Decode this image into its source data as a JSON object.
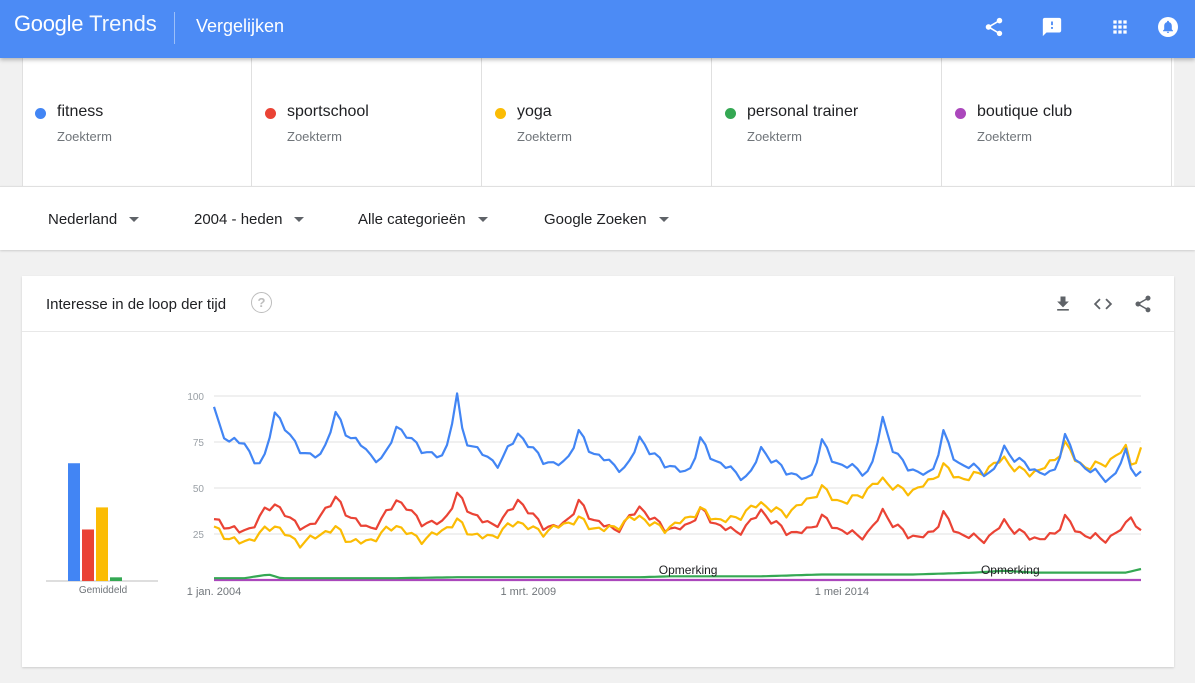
{
  "header": {
    "logo_google": "Google",
    "logo_trends": "Trends",
    "page_title": "Vergelijken",
    "icons": [
      "share-icon",
      "feedback-icon",
      "apps-icon",
      "notifications-icon"
    ]
  },
  "terms": [
    {
      "name": "fitness",
      "type": "Zoekterm",
      "color": "#4285f4"
    },
    {
      "name": "sportschool",
      "type": "Zoekterm",
      "color": "#ea4335"
    },
    {
      "name": "yoga",
      "type": "Zoekterm",
      "color": "#fbbc04"
    },
    {
      "name": "personal trainer",
      "type": "Zoekterm",
      "color": "#34a853"
    },
    {
      "name": "boutique club",
      "type": "Zoekterm",
      "color": "#ab47bc"
    }
  ],
  "filters": {
    "region": "Nederland",
    "period": "2004 - heden",
    "category": "Alle categorieën",
    "property": "Google Zoeken"
  },
  "card": {
    "title": "Interesse in de loop der tijd",
    "help_glyph": "?",
    "avg_label": "Gemiddeld",
    "icons": [
      "download-icon",
      "embed-icon",
      "share-icon"
    ]
  },
  "chart_data": {
    "type": "line",
    "ylim": [
      0,
      100
    ],
    "y_ticks": [
      25,
      50,
      75,
      100
    ],
    "x_ticks": [
      {
        "label": "1 jan. 2004",
        "x": 2004.0
      },
      {
        "label": "1 mrt. 2009",
        "x": 2009.17
      },
      {
        "label": "1 mei 2014",
        "x": 2014.33
      }
    ],
    "x_range": [
      2004.0,
      2019.25
    ],
    "annotations": [
      {
        "text": "Opmerking",
        "x": 2011.8
      },
      {
        "text": "Opmerking",
        "x": 2017.1
      }
    ],
    "averages": [
      {
        "name": "fitness",
        "value": 64
      },
      {
        "name": "sportschool",
        "value": 28
      },
      {
        "name": "yoga",
        "value": 40
      },
      {
        "name": "personal trainer",
        "value": 2
      },
      {
        "name": "boutique club",
        "value": 0
      }
    ],
    "series": [
      {
        "name": "fitness",
        "color": "#4285f4",
        "anchors": [
          [
            2004.0,
            93
          ],
          [
            2004.1,
            82
          ],
          [
            2004.25,
            76
          ],
          [
            2004.5,
            74
          ],
          [
            2004.65,
            66
          ],
          [
            2004.8,
            61
          ],
          [
            2005.0,
            92
          ],
          [
            2005.2,
            80
          ],
          [
            2005.4,
            72
          ],
          [
            2005.6,
            66
          ],
          [
            2005.8,
            70
          ],
          [
            2006.0,
            90
          ],
          [
            2006.2,
            79
          ],
          [
            2006.4,
            74
          ],
          [
            2006.6,
            67
          ],
          [
            2006.8,
            65
          ],
          [
            2007.0,
            84
          ],
          [
            2007.2,
            77
          ],
          [
            2007.4,
            72
          ],
          [
            2007.6,
            67
          ],
          [
            2007.8,
            68
          ],
          [
            2008.0,
            100
          ],
          [
            2008.1,
            77
          ],
          [
            2008.3,
            72
          ],
          [
            2008.5,
            66
          ],
          [
            2008.7,
            63
          ],
          [
            2009.0,
            80
          ],
          [
            2009.2,
            72
          ],
          [
            2009.4,
            66
          ],
          [
            2009.6,
            62
          ],
          [
            2009.8,
            65
          ],
          [
            2010.0,
            80
          ],
          [
            2010.2,
            70
          ],
          [
            2010.4,
            66
          ],
          [
            2010.6,
            62
          ],
          [
            2010.8,
            60
          ],
          [
            2011.0,
            78
          ],
          [
            2011.2,
            68
          ],
          [
            2011.4,
            64
          ],
          [
            2011.6,
            60
          ],
          [
            2011.8,
            58
          ],
          [
            2012.0,
            76
          ],
          [
            2012.2,
            66
          ],
          [
            2012.4,
            62
          ],
          [
            2012.6,
            58
          ],
          [
            2012.8,
            55
          ],
          [
            2013.0,
            72
          ],
          [
            2013.2,
            64
          ],
          [
            2013.4,
            60
          ],
          [
            2013.6,
            56
          ],
          [
            2013.8,
            54
          ],
          [
            2014.0,
            75
          ],
          [
            2014.2,
            64
          ],
          [
            2014.4,
            62
          ],
          [
            2014.6,
            60
          ],
          [
            2014.8,
            58
          ],
          [
            2015.0,
            88
          ],
          [
            2015.2,
            68
          ],
          [
            2015.4,
            62
          ],
          [
            2015.6,
            58
          ],
          [
            2015.8,
            57
          ],
          [
            2016.0,
            80
          ],
          [
            2016.2,
            64
          ],
          [
            2016.4,
            62
          ],
          [
            2016.6,
            60
          ],
          [
            2016.8,
            57
          ],
          [
            2017.0,
            72
          ],
          [
            2017.2,
            65
          ],
          [
            2017.4,
            62
          ],
          [
            2017.6,
            58
          ],
          [
            2017.8,
            57
          ],
          [
            2018.0,
            78
          ],
          [
            2018.2,
            64
          ],
          [
            2018.4,
            60
          ],
          [
            2018.6,
            56
          ],
          [
            2018.8,
            55
          ],
          [
            2019.0,
            70
          ],
          [
            2019.1,
            60
          ],
          [
            2019.25,
            57
          ]
        ]
      },
      {
        "name": "sportschool",
        "color": "#ea4335",
        "anchors": [
          [
            2004.0,
            32
          ],
          [
            2004.2,
            30
          ],
          [
            2004.4,
            26
          ],
          [
            2004.6,
            28
          ],
          [
            2004.8,
            36
          ],
          [
            2005.0,
            42
          ],
          [
            2005.2,
            34
          ],
          [
            2005.4,
            30
          ],
          [
            2005.6,
            28
          ],
          [
            2005.8,
            38
          ],
          [
            2006.0,
            44
          ],
          [
            2006.2,
            36
          ],
          [
            2006.4,
            30
          ],
          [
            2006.6,
            28
          ],
          [
            2006.8,
            34
          ],
          [
            2007.0,
            44
          ],
          [
            2007.2,
            38
          ],
          [
            2007.4,
            32
          ],
          [
            2007.6,
            30
          ],
          [
            2007.8,
            33
          ],
          [
            2008.0,
            46
          ],
          [
            2008.2,
            38
          ],
          [
            2008.4,
            32
          ],
          [
            2008.6,
            30
          ],
          [
            2008.8,
            34
          ],
          [
            2009.0,
            44
          ],
          [
            2009.2,
            36
          ],
          [
            2009.4,
            30
          ],
          [
            2009.6,
            28
          ],
          [
            2009.8,
            32
          ],
          [
            2010.0,
            42
          ],
          [
            2010.2,
            34
          ],
          [
            2010.4,
            30
          ],
          [
            2010.6,
            27
          ],
          [
            2010.8,
            32
          ],
          [
            2011.0,
            40
          ],
          [
            2011.2,
            33
          ],
          [
            2011.4,
            29
          ],
          [
            2011.6,
            27
          ],
          [
            2011.8,
            30
          ],
          [
            2012.0,
            38
          ],
          [
            2012.2,
            32
          ],
          [
            2012.4,
            28
          ],
          [
            2012.6,
            26
          ],
          [
            2012.8,
            30
          ],
          [
            2013.0,
            38
          ],
          [
            2013.2,
            31
          ],
          [
            2013.4,
            27
          ],
          [
            2013.6,
            25
          ],
          [
            2013.8,
            28
          ],
          [
            2014.0,
            34
          ],
          [
            2014.2,
            29
          ],
          [
            2014.4,
            26
          ],
          [
            2014.6,
            24
          ],
          [
            2014.8,
            26
          ],
          [
            2015.0,
            38
          ],
          [
            2015.2,
            29
          ],
          [
            2015.4,
            25
          ],
          [
            2015.6,
            23
          ],
          [
            2015.8,
            25
          ],
          [
            2016.0,
            36
          ],
          [
            2016.2,
            26
          ],
          [
            2016.4,
            24
          ],
          [
            2016.6,
            22
          ],
          [
            2016.8,
            24
          ],
          [
            2017.0,
            32
          ],
          [
            2017.2,
            26
          ],
          [
            2017.4,
            24
          ],
          [
            2017.6,
            22
          ],
          [
            2017.8,
            24
          ],
          [
            2018.0,
            34
          ],
          [
            2018.2,
            26
          ],
          [
            2018.4,
            24
          ],
          [
            2018.6,
            22
          ],
          [
            2018.8,
            24
          ],
          [
            2019.0,
            30
          ],
          [
            2019.1,
            36
          ],
          [
            2019.25,
            25
          ]
        ]
      },
      {
        "name": "yoga",
        "color": "#fbbc04",
        "anchors": [
          [
            2004.0,
            28
          ],
          [
            2004.2,
            24
          ],
          [
            2004.4,
            20
          ],
          [
            2004.6,
            22
          ],
          [
            2004.8,
            26
          ],
          [
            2005.0,
            30
          ],
          [
            2005.2,
            24
          ],
          [
            2005.4,
            20
          ],
          [
            2005.6,
            22
          ],
          [
            2005.8,
            26
          ],
          [
            2006.0,
            28
          ],
          [
            2006.2,
            22
          ],
          [
            2006.4,
            20
          ],
          [
            2006.6,
            22
          ],
          [
            2006.8,
            26
          ],
          [
            2007.0,
            30
          ],
          [
            2007.2,
            25
          ],
          [
            2007.4,
            22
          ],
          [
            2007.6,
            24
          ],
          [
            2007.8,
            28
          ],
          [
            2008.0,
            32
          ],
          [
            2008.2,
            26
          ],
          [
            2008.4,
            23
          ],
          [
            2008.6,
            24
          ],
          [
            2008.8,
            28
          ],
          [
            2009.0,
            32
          ],
          [
            2009.2,
            28
          ],
          [
            2009.4,
            26
          ],
          [
            2009.6,
            28
          ],
          [
            2009.8,
            31
          ],
          [
            2010.0,
            33
          ],
          [
            2010.2,
            29
          ],
          [
            2010.4,
            27
          ],
          [
            2010.6,
            29
          ],
          [
            2010.8,
            32
          ],
          [
            2011.0,
            35
          ],
          [
            2011.2,
            30
          ],
          [
            2011.4,
            28
          ],
          [
            2011.6,
            30
          ],
          [
            2011.8,
            34
          ],
          [
            2012.0,
            38
          ],
          [
            2012.2,
            34
          ],
          [
            2012.4,
            32
          ],
          [
            2012.6,
            34
          ],
          [
            2012.8,
            38
          ],
          [
            2013.0,
            42
          ],
          [
            2013.2,
            38
          ],
          [
            2013.4,
            36
          ],
          [
            2013.6,
            40
          ],
          [
            2013.8,
            44
          ],
          [
            2014.0,
            50
          ],
          [
            2014.2,
            44
          ],
          [
            2014.4,
            42
          ],
          [
            2014.6,
            46
          ],
          [
            2014.8,
            50
          ],
          [
            2015.0,
            55
          ],
          [
            2015.2,
            50
          ],
          [
            2015.4,
            48
          ],
          [
            2015.6,
            50
          ],
          [
            2015.8,
            54
          ],
          [
            2016.0,
            62
          ],
          [
            2016.2,
            56
          ],
          [
            2016.4,
            55
          ],
          [
            2016.6,
            58
          ],
          [
            2016.8,
            62
          ],
          [
            2017.0,
            66
          ],
          [
            2017.2,
            60
          ],
          [
            2017.4,
            58
          ],
          [
            2017.6,
            60
          ],
          [
            2017.8,
            64
          ],
          [
            2018.0,
            74
          ],
          [
            2018.2,
            64
          ],
          [
            2018.4,
            61
          ],
          [
            2018.6,
            63
          ],
          [
            2018.8,
            66
          ],
          [
            2019.0,
            72
          ],
          [
            2019.1,
            62
          ],
          [
            2019.25,
            70
          ]
        ]
      },
      {
        "name": "personal trainer",
        "color": "#34a853",
        "anchors": [
          [
            2004.0,
            1
          ],
          [
            2004.5,
            1
          ],
          [
            2004.9,
            3
          ],
          [
            2005.1,
            1
          ],
          [
            2006.0,
            1
          ],
          [
            2007.0,
            1
          ],
          [
            2008.0,
            1.5
          ],
          [
            2009.0,
            1.5
          ],
          [
            2010.0,
            1.5
          ],
          [
            2011.0,
            1.5
          ],
          [
            2011.5,
            2
          ],
          [
            2012.0,
            2
          ],
          [
            2012.5,
            2
          ],
          [
            2013.0,
            2
          ],
          [
            2013.5,
            2.5
          ],
          [
            2014.0,
            3
          ],
          [
            2014.5,
            3
          ],
          [
            2015.0,
            3
          ],
          [
            2015.5,
            3
          ],
          [
            2016.0,
            3.5
          ],
          [
            2016.5,
            4
          ],
          [
            2017.0,
            5
          ],
          [
            2017.5,
            4
          ],
          [
            2018.0,
            4
          ],
          [
            2018.5,
            4
          ],
          [
            2019.0,
            4
          ],
          [
            2019.25,
            6
          ]
        ]
      },
      {
        "name": "boutique club",
        "color": "#ab47bc",
        "anchors": [
          [
            2004.0,
            0
          ],
          [
            2019.25,
            0
          ]
        ]
      }
    ]
  }
}
